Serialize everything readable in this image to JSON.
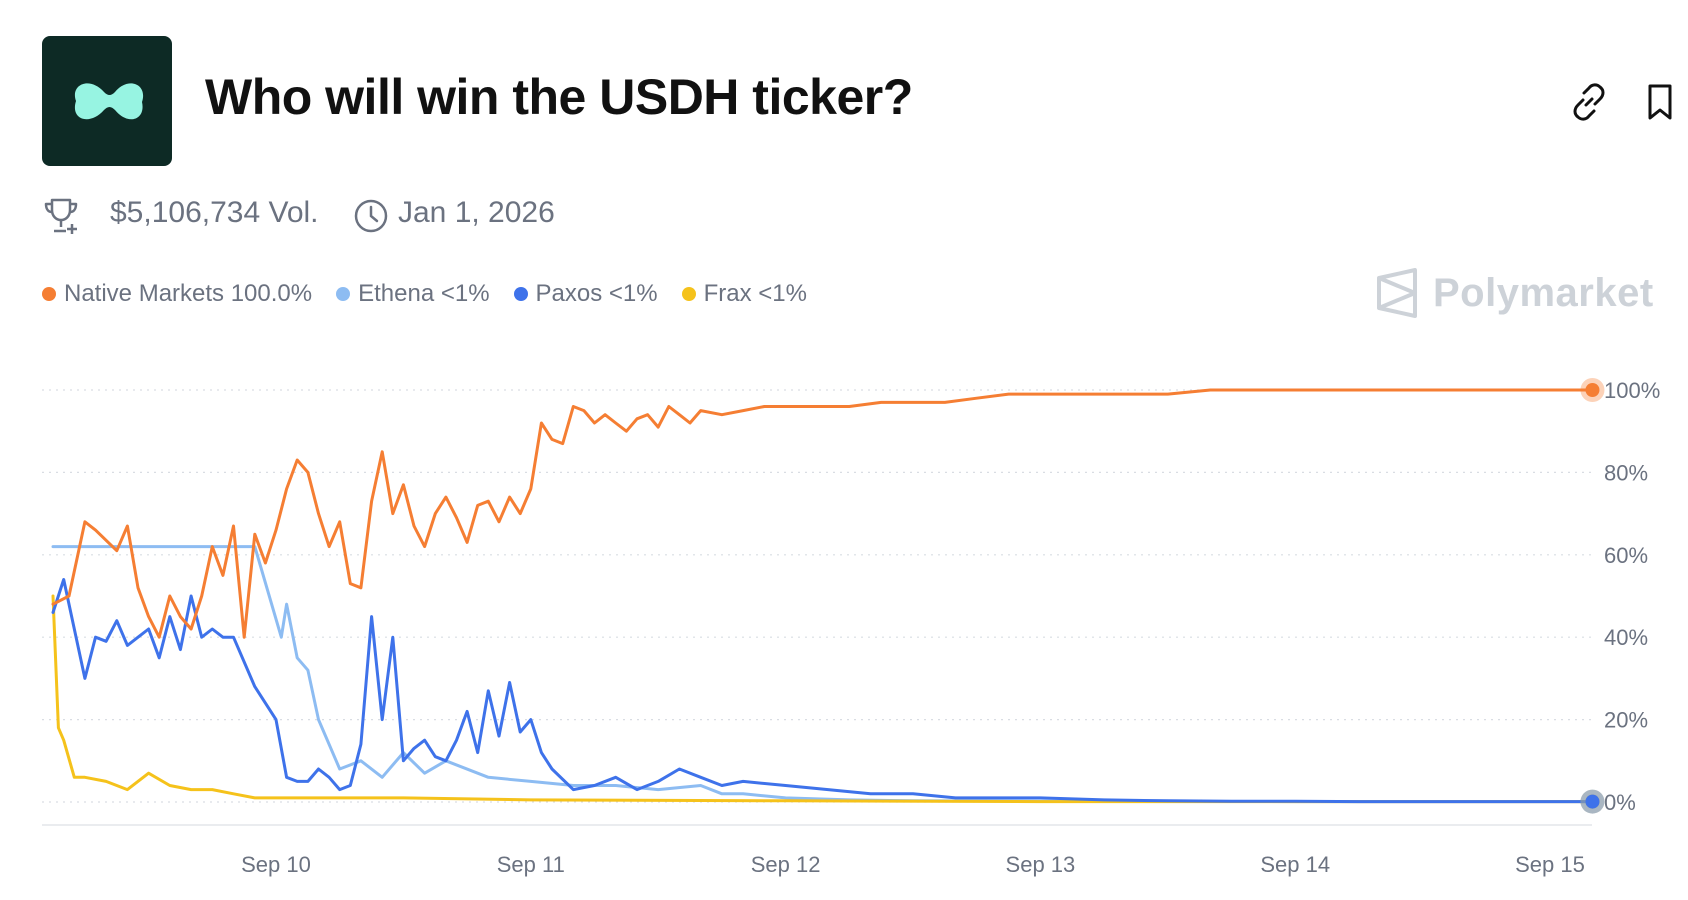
{
  "header": {
    "title": "Who will win the USDH ticker?",
    "logo_icon": "hyperliquid-logo-icon",
    "link_icon": "link-icon",
    "bookmark_icon": "bookmark-icon"
  },
  "meta": {
    "trophy_icon": "trophy-icon",
    "volume": "$5,106,734 Vol.",
    "clock_icon": "clock-icon",
    "end_date": "Jan 1, 2026"
  },
  "legend": [
    {
      "label": "Native Markets 100.0%",
      "color": "#f57e33"
    },
    {
      "label": "Ethena <1%",
      "color": "#8dbcf2"
    },
    {
      "label": "Paxos <1%",
      "color": "#3e72ea"
    },
    {
      "label": "Frax <1%",
      "color": "#f5c21b"
    }
  ],
  "brand": {
    "name": "Polymarket",
    "icon": "polymarket-logo-icon"
  },
  "chart_data": {
    "type": "line",
    "x_ticks": [
      "Sep 10",
      "Sep 11",
      "Sep 12",
      "Sep 13",
      "Sep 14",
      "Sep 15"
    ],
    "y_ticks": [
      "0%",
      "20%",
      "40%",
      "60%",
      "80%",
      "100%"
    ],
    "ylim": [
      0,
      100
    ],
    "xlim": [
      "Sep 9 03:00",
      "Sep 15 04:00"
    ],
    "grid": true,
    "series": [
      {
        "name": "Native Markets",
        "color": "#f57e33",
        "x": [
          "Sep 9 03:00",
          "Sep 9 04:30",
          "Sep 9 06:00",
          "Sep 9 07:00",
          "Sep 9 09:00",
          "Sep 9 10:00",
          "Sep 9 11:00",
          "Sep 9 12:00",
          "Sep 9 13:00",
          "Sep 9 14:00",
          "Sep 9 15:00",
          "Sep 9 16:00",
          "Sep 9 17:00",
          "Sep 9 18:00",
          "Sep 9 19:00",
          "Sep 9 20:00",
          "Sep 9 21:00",
          "Sep 9 22:00",
          "Sep 9 23:00",
          "Sep 10 00:00",
          "Sep 10 01:00",
          "Sep 10 02:00",
          "Sep 10 03:00",
          "Sep 10 04:00",
          "Sep 10 05:00",
          "Sep 10 06:00",
          "Sep 10 07:00",
          "Sep 10 08:00",
          "Sep 10 09:00",
          "Sep 10 10:00",
          "Sep 10 11:00",
          "Sep 10 12:00",
          "Sep 10 13:00",
          "Sep 10 14:00",
          "Sep 10 15:00",
          "Sep 10 16:00",
          "Sep 10 17:00",
          "Sep 10 18:00",
          "Sep 10 19:00",
          "Sep 10 20:00",
          "Sep 10 21:00",
          "Sep 10 22:00",
          "Sep 10 23:00",
          "Sep 11 00:00",
          "Sep 11 01:00",
          "Sep 11 02:00",
          "Sep 11 03:00",
          "Sep 11 04:00",
          "Sep 11 05:00",
          "Sep 11 06:00",
          "Sep 11 07:00",
          "Sep 11 08:00",
          "Sep 11 09:00",
          "Sep 11 10:00",
          "Sep 11 11:00",
          "Sep 11 12:00",
          "Sep 11 13:00",
          "Sep 11 14:00",
          "Sep 11 15:00",
          "Sep 11 16:00",
          "Sep 11 18:00",
          "Sep 11 20:00",
          "Sep 11 22:00",
          "Sep 12 00:00",
          "Sep 12 03:00",
          "Sep 12 06:00",
          "Sep 12 09:00",
          "Sep 12 12:00",
          "Sep 12 15:00",
          "Sep 12 18:00",
          "Sep 12 21:00",
          "Sep 13 00:00",
          "Sep 13 04:00",
          "Sep 13 08:00",
          "Sep 13 12:00",
          "Sep 13 16:00",
          "Sep 13 20:00",
          "Sep 14 00:00",
          "Sep 14 06:00",
          "Sep 14 12:00",
          "Sep 14 18:00",
          "Sep 15 00:00",
          "Sep 15 04:00"
        ],
        "values": [
          48,
          50,
          68,
          66,
          61,
          67,
          52,
          45,
          40,
          50,
          45,
          42,
          50,
          62,
          55,
          67,
          40,
          65,
          58,
          66,
          76,
          83,
          80,
          70,
          62,
          68,
          53,
          52,
          73,
          85,
          70,
          77,
          67,
          62,
          70,
          74,
          69,
          63,
          72,
          73,
          68,
          74,
          70,
          76,
          92,
          88,
          87,
          96,
          95,
          92,
          94,
          92,
          90,
          93,
          94,
          91,
          96,
          94,
          92,
          95,
          94,
          95,
          96,
          96,
          96,
          96,
          97,
          97,
          97,
          98,
          99,
          99,
          99,
          99,
          99,
          100,
          100,
          100,
          100,
          100,
          100,
          100,
          100
        ]
      },
      {
        "name": "Ethena",
        "color": "#8dbcf2",
        "x": [
          "Sep 9 03:00",
          "Sep 9 12:00",
          "Sep 9 22:00",
          "Sep 10 00:30",
          "Sep 10 01:00",
          "Sep 10 02:00",
          "Sep 10 03:00",
          "Sep 10 04:00",
          "Sep 10 06:00",
          "Sep 10 08:00",
          "Sep 10 10:00",
          "Sep 10 12:00",
          "Sep 10 14:00",
          "Sep 10 16:00",
          "Sep 10 20:00",
          "Sep 11 00:00",
          "Sep 11 04:00",
          "Sep 11 08:00",
          "Sep 11 12:00",
          "Sep 11 16:00",
          "Sep 11 18:00",
          "Sep 11 20:00",
          "Sep 12 00:00",
          "Sep 12 06:00",
          "Sep 12 12:00",
          "Sep 13 00:00",
          "Sep 14 00:00",
          "Sep 15 04:00"
        ],
        "values": [
          62,
          62,
          62,
          40,
          48,
          35,
          32,
          20,
          8,
          10,
          6,
          12,
          7,
          10,
          6,
          5,
          4,
          4,
          3,
          4,
          2,
          2,
          1,
          0.5,
          0.3,
          0.2,
          0.1,
          0.1
        ]
      },
      {
        "name": "Paxos",
        "color": "#3e72ea",
        "x": [
          "Sep 9 03:00",
          "Sep 9 04:00",
          "Sep 9 06:00",
          "Sep 9 07:00",
          "Sep 9 08:00",
          "Sep 9 09:00",
          "Sep 9 10:00",
          "Sep 9 12:00",
          "Sep 9 13:00",
          "Sep 9 14:00",
          "Sep 9 15:00",
          "Sep 9 16:00",
          "Sep 9 17:00",
          "Sep 9 18:00",
          "Sep 9 19:00",
          "Sep 9 20:00",
          "Sep 9 22:00",
          "Sep 10 00:00",
          "Sep 10 01:00",
          "Sep 10 02:00",
          "Sep 10 03:00",
          "Sep 10 04:00",
          "Sep 10 05:00",
          "Sep 10 06:00",
          "Sep 10 07:00",
          "Sep 10 08:00",
          "Sep 10 09:00",
          "Sep 10 10:00",
          "Sep 10 11:00",
          "Sep 10 12:00",
          "Sep 10 13:00",
          "Sep 10 14:00",
          "Sep 10 15:00",
          "Sep 10 16:00",
          "Sep 10 17:00",
          "Sep 10 18:00",
          "Sep 10 19:00",
          "Sep 10 20:00",
          "Sep 10 21:00",
          "Sep 10 22:00",
          "Sep 10 23:00",
          "Sep 11 00:00",
          "Sep 11 01:00",
          "Sep 11 02:00",
          "Sep 11 04:00",
          "Sep 11 06:00",
          "Sep 11 08:00",
          "Sep 11 10:00",
          "Sep 11 12:00",
          "Sep 11 14:00",
          "Sep 11 16:00",
          "Sep 11 18:00",
          "Sep 11 20:00",
          "Sep 12 00:00",
          "Sep 12 04:00",
          "Sep 12 08:00",
          "Sep 12 12:00",
          "Sep 12 16:00",
          "Sep 12 20:00",
          "Sep 13 00:00",
          "Sep 13 06:00",
          "Sep 13 12:00",
          "Sep 13 18:00",
          "Sep 14 00:00",
          "Sep 14 06:00",
          "Sep 14 12:00",
          "Sep 14 18:00",
          "Sep 15 00:00",
          "Sep 15 04:00"
        ],
        "values": [
          46,
          54,
          30,
          40,
          39,
          44,
          38,
          42,
          35,
          45,
          37,
          50,
          40,
          42,
          40,
          40,
          28,
          20,
          6,
          5,
          5,
          8,
          6,
          3,
          4,
          14,
          45,
          20,
          40,
          10,
          13,
          15,
          11,
          10,
          15,
          22,
          12,
          27,
          16,
          29,
          17,
          20,
          12,
          8,
          3,
          4,
          6,
          3,
          5,
          8,
          6,
          4,
          5,
          4,
          3,
          2,
          2,
          1,
          1,
          1,
          0.5,
          0.3,
          0.2,
          0.2,
          0.1,
          0.1,
          0.1,
          0.1,
          0.1
        ]
      },
      {
        "name": "Frax",
        "color": "#f5c21b",
        "x": [
          "Sep 9 03:00",
          "Sep 9 03:30",
          "Sep 9 04:00",
          "Sep 9 05:00",
          "Sep 9 06:00",
          "Sep 9 08:00",
          "Sep 9 10:00",
          "Sep 9 12:00",
          "Sep 9 14:00",
          "Sep 9 16:00",
          "Sep 9 18:00",
          "Sep 9 20:00",
          "Sep 9 22:00",
          "Sep 10 00:00",
          "Sep 10 04:00",
          "Sep 10 08:00",
          "Sep 10 12:00",
          "Sep 11 00:00",
          "Sep 12 00:00",
          "Sep 13 00:00",
          "Sep 14 00:00",
          "Sep 15 04:00"
        ],
        "values": [
          50,
          18,
          15,
          6,
          6,
          5,
          3,
          7,
          4,
          3,
          3,
          2,
          1,
          1,
          1,
          1,
          1,
          0.5,
          0.3,
          0.1,
          0.1,
          0.1
        ]
      }
    ]
  }
}
